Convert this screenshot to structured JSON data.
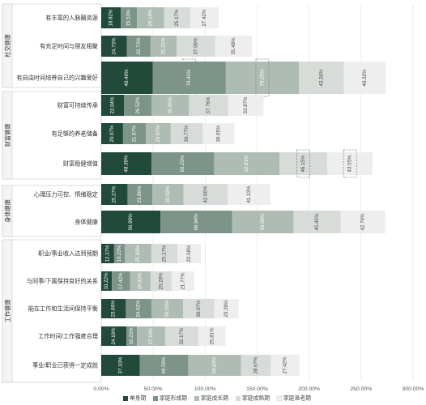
{
  "chart_data": {
    "type": "bar",
    "orientation": "horizontal",
    "stacked": true,
    "title": "",
    "xlabel": "",
    "ylabel": "",
    "xlim": [
      0,
      300
    ],
    "x_ticks": [
      "0.00%",
      "50.00%",
      "100.00%",
      "150.00%",
      "200.00%",
      "250.00%",
      "300.00%"
    ],
    "grid": true,
    "legend_position": "bottom",
    "groups": [
      {
        "name": "社交健康",
        "items": [
          "有丰富的人脉圈资源",
          "有充足时间与朋友相聚",
          "有自由时间培养自己的兴趣爱好"
        ]
      },
      {
        "name": "财富健康",
        "items": [
          "财富可持续传承",
          "有足够的养老储备",
          "财富稳健增值"
        ]
      },
      {
        "name": "身体健康",
        "items": [
          "心理压力可控、情绪稳定",
          "身体健康"
        ]
      },
      {
        "name": "工作健康",
        "items": [
          "职业/事业收入达到预期",
          "与同事/下属保持良好的关系",
          "能在工作和生活间保持平衡",
          "工作时间/工作强度合理",
          "事业/职业已获得一定成就"
        ]
      }
    ],
    "categories": [
      "有丰富的人脉圈资源",
      "有充足时间与朋友相聚",
      "有自由时间培养自己的兴趣爱好",
      "财富可持续传承",
      "有足够的养老储备",
      "财富稳健增值",
      "心理压力可控、情绪稳定",
      "身体健康",
      "职业/事业收入达到预期",
      "与同事/下属保持良好的关系",
      "能在工作和生活间保持平衡",
      "工作时间/工作强度合理",
      "事业/职业已获得一定成就"
    ],
    "series": [
      {
        "name": "单身期",
        "color": "#214a3a",
        "label_color": "#ffffff",
        "values": [
          18.82,
          24.73,
          49.46,
          22.04,
          20.97,
          48.39,
          25.27,
          56.99,
          12.37,
          10.22,
          23.66,
          24.19,
          37.1
        ],
        "labels": [
          "18.82%",
          "24.73%",
          "49.46%",
          "22.04%",
          "20.97%",
          "48.39%",
          "25.27%",
          "56.99%",
          "12.37%",
          "10.22%",
          "23.66%",
          "24.19%",
          "37.10%"
        ]
      },
      {
        "name": "家庭形成期",
        "color": "#7d9488",
        "label_color": "#ffffff",
        "values": [
          15.53,
          22.73,
          70.45,
          26.52,
          21.97,
          60.23,
          23.86,
          68.94,
          10.23,
          17.42,
          24.62,
          10.23,
          46.59
        ],
        "labels": [
          "15.53%",
          "22.73%",
          "70.45%",
          "26.52%",
          "21.97%",
          "60.23%",
          "23.86%",
          "68.94%",
          "10.23%",
          "17.42%",
          "24.62%",
          "10.23%",
          "46.59%"
        ]
      },
      {
        "name": "家庭成长期",
        "color": "#aebcb3",
        "label_color": "#ffffff",
        "values": [
          26.1,
          25.21,
          70.25,
          35.85,
          23.97,
          62.81,
          30.02,
          59.09,
          25.62,
          19.83,
          30.5,
          27.1,
          50.83
        ],
        "labels": [
          "26.10%",
          "25.21%",
          "70.25%",
          "35.85%",
          "23.97%",
          "62.81%",
          "30.02%",
          "59.09%",
          "25.62%",
          "19.83%",
          "30.50%",
          "27.10%",
          "50.83%"
        ]
      },
      {
        "name": "家庭成熟期",
        "color": "#d7dcd9",
        "label_color": "#444444",
        "values": [
          25.17,
          37.06,
          43.36,
          37.76,
          30.77,
          46.15,
          42.66,
          45.45,
          25.17,
          20.28,
          30.07,
          32.17,
          28.67
        ],
        "labels": [
          "25.17%",
          "37.06%",
          "43.36%",
          "37.76%",
          "30.77%",
          "46.15%",
          "42.66%",
          "45.45%",
          "25.17%",
          "20.28%",
          "30.07%",
          "32.17%",
          "28.67%"
        ]
      },
      {
        "name": "家庭衰老期",
        "color": "#eeeeee",
        "label_color": "#444444",
        "values": [
          27.42,
          35.48,
          40.32,
          33.87,
          30.65,
          43.55,
          41.13,
          42.74,
          22.58,
          21.77,
          23.39,
          25.81,
          27.42
        ],
        "labels": [
          "27.42%",
          "35.48%",
          "40.32%",
          "33.87%",
          "30.65%",
          "43.55%",
          "41.13%",
          "42.74%",
          "22.58%",
          "21.77%",
          "23.39%",
          "25.81%",
          "27.42%"
        ]
      }
    ],
    "highlighted": [
      {
        "category": "有自由时间培养自己的兴趣爱好",
        "series": [
          "家庭形成期",
          "家庭成长期"
        ]
      },
      {
        "category": "财富稳健增值",
        "series": [
          "家庭成熟期",
          "家庭衰老期"
        ]
      }
    ]
  }
}
